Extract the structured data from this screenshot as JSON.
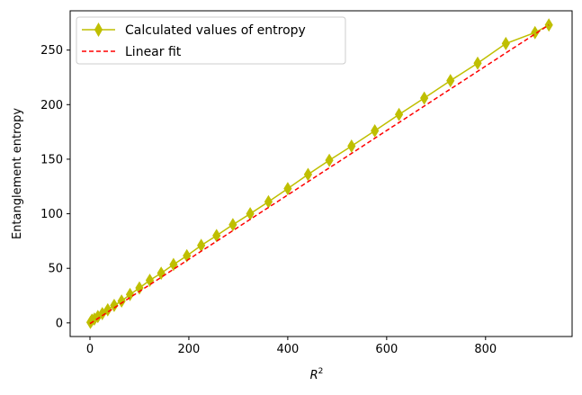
{
  "chart_data": {
    "type": "line",
    "title": "",
    "xlabel": "R",
    "xlabel_superscript": "2",
    "ylabel": "Entanglement entropy",
    "xlim": [
      -40,
      975
    ],
    "ylim": [
      -12.5,
      286
    ],
    "xticks": [
      0,
      200,
      400,
      600,
      800
    ],
    "yticks": [
      0,
      50,
      100,
      150,
      200,
      250
    ],
    "grid": false,
    "legend": {
      "placement": "top-left"
    },
    "series": [
      {
        "name": "Calculated values of entropy",
        "style": "line-diamond",
        "color": "#bfbf00",
        "x": [
          1,
          4,
          9,
          16,
          25,
          36,
          49,
          64,
          81,
          100,
          121,
          144,
          169,
          196,
          225,
          256,
          289,
          324,
          361,
          400,
          441,
          484,
          529,
          576,
          625,
          676,
          729,
          784,
          841,
          900,
          928
        ],
        "y": [
          0.5,
          2.5,
          3.5,
          5.8,
          8.5,
          12,
          16,
          20,
          26,
          32,
          39,
          45.5,
          53.5,
          61.5,
          71,
          80,
          90,
          100,
          111,
          123,
          136,
          149,
          162,
          176,
          191,
          206,
          222,
          238,
          256,
          266,
          273
        ]
      },
      {
        "name": "Linear fit",
        "style": "dashed",
        "color": "#ff0000",
        "x": [
          0,
          928
        ],
        "y": [
          -0.7,
          273
        ]
      }
    ]
  }
}
